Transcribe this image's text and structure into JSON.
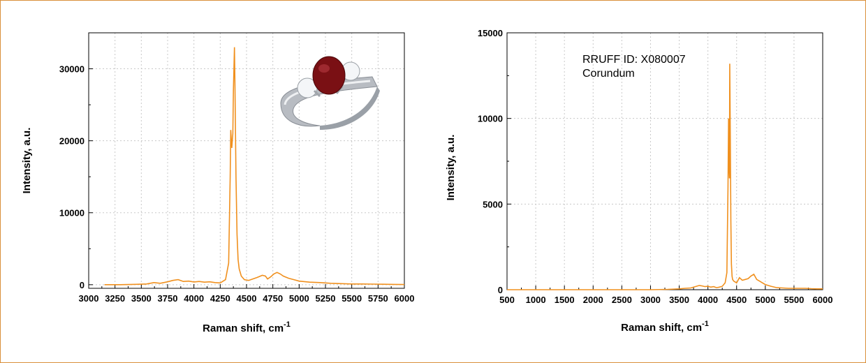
{
  "colors": {
    "frame": "#d98f3a",
    "series": "#f0901e",
    "grid": "#c8c8c8"
  },
  "chart_data": [
    {
      "type": "line",
      "title": "",
      "xlabel": "Raman shift, cm",
      "xlabel_sup": "-1",
      "ylabel": "Intensity, a.u.",
      "xlim": [
        3000,
        6000
      ],
      "ylim": [
        -500,
        35000
      ],
      "xticks": [
        3000,
        3250,
        3500,
        3750,
        4000,
        4250,
        4500,
        4750,
        5000,
        5250,
        5500,
        5750,
        6000
      ],
      "yticks": [
        0,
        10000,
        20000,
        30000
      ],
      "grid": true,
      "inset_image": "red-gemstone-ring",
      "series": [
        {
          "x": [
            3150,
            3300,
            3450,
            3550,
            3620,
            3680,
            3750,
            3800,
            3850,
            3900,
            3950,
            4000,
            4050,
            4100,
            4150,
            4200,
            4250,
            4300,
            4330,
            4345,
            4350,
            4360,
            4370,
            4375,
            4385,
            4390,
            4400,
            4410,
            4420,
            4430,
            4450,
            4480,
            4520,
            4560,
            4600,
            4650,
            4680,
            4700,
            4730,
            4760,
            4790,
            4820,
            4850,
            4900,
            4950,
            5000,
            5100,
            5200,
            5300,
            5400,
            5500,
            5600,
            5700,
            5800,
            5900,
            6000
          ],
          "y": [
            0,
            0,
            50,
            100,
            300,
            200,
            400,
            600,
            700,
            450,
            500,
            380,
            450,
            350,
            400,
            300,
            250,
            700,
            3000,
            15000,
            21500,
            19000,
            21000,
            27000,
            33000,
            28000,
            15000,
            7000,
            3500,
            2200,
            1200,
            700,
            600,
            800,
            1000,
            1300,
            1200,
            800,
            1100,
            1500,
            1700,
            1500,
            1200,
            900,
            700,
            500,
            350,
            300,
            200,
            150,
            100,
            100,
            80,
            60,
            40,
            20
          ]
        }
      ]
    },
    {
      "type": "line",
      "title": "",
      "xlabel": "Raman shift, cm",
      "xlabel_sup": "-1",
      "ylabel": "Intensity, a.u.",
      "xlim": [
        500,
        6000
      ],
      "ylim": [
        0,
        15000
      ],
      "xticks": [
        500,
        1000,
        1500,
        2000,
        2500,
        3000,
        3500,
        4000,
        4500,
        5000,
        5500,
        6000
      ],
      "yticks": [
        0,
        5000,
        10000,
        15000
      ],
      "grid": true,
      "annotations": [
        "RRUFF ID: X080007",
        "Corundum"
      ],
      "series": [
        {
          "x": [
            500,
            1000,
            1500,
            2000,
            2500,
            3000,
            3300,
            3500,
            3600,
            3700,
            3800,
            3850,
            3900,
            3950,
            4000,
            4050,
            4100,
            4150,
            4200,
            4250,
            4300,
            4330,
            4350,
            4360,
            4370,
            4375,
            4380,
            4390,
            4400,
            4410,
            4420,
            4430,
            4450,
            4500,
            4550,
            4600,
            4650,
            4700,
            4750,
            4800,
            4850,
            4900,
            4950,
            5000,
            5100,
            5200,
            5300,
            5400,
            5500,
            5600,
            5700,
            5800,
            5900,
            6000
          ],
          "y": [
            0,
            0,
            0,
            0,
            0,
            0,
            20,
            50,
            80,
            100,
            200,
            250,
            220,
            180,
            200,
            150,
            180,
            120,
            150,
            200,
            400,
            1000,
            6000,
            10000,
            7000,
            6500,
            13200,
            9000,
            4000,
            1500,
            800,
            600,
            500,
            400,
            700,
            550,
            600,
            650,
            800,
            900,
            600,
            500,
            400,
            300,
            200,
            120,
            100,
            80,
            80,
            80,
            80,
            60,
            50,
            50
          ]
        }
      ]
    }
  ]
}
